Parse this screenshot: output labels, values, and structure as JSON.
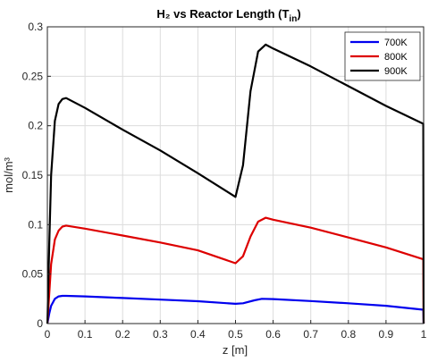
{
  "chart_data": {
    "type": "line",
    "title": "H₂ vs Reactor Length (T",
    "title_subscript": "in",
    "title_close": ")",
    "xlabel": "z [m]",
    "ylabel": "mol/m³",
    "xlim": [
      0,
      1
    ],
    "ylim": [
      0,
      0.3
    ],
    "grid": true,
    "legend_position": "top-right",
    "x_ticks": [
      0,
      0.1,
      0.2,
      0.3,
      0.4,
      0.5,
      0.6,
      0.7,
      0.8,
      0.9,
      1
    ],
    "x_tick_labels": [
      "0",
      "0.1",
      "0.2",
      "0.3",
      "0.4",
      "0.5",
      "0.6",
      "0.7",
      "0.8",
      "0.9",
      "1"
    ],
    "y_ticks": [
      0,
      0.05,
      0.1,
      0.15,
      0.2,
      0.25,
      0.3
    ],
    "y_tick_labels": [
      "0",
      "0.05",
      "0.1",
      "0.15",
      "0.2",
      "0.25",
      "0.3"
    ],
    "series": [
      {
        "name": "700K",
        "color": "#0000ee",
        "x": [
          0,
          0.005,
          0.01,
          0.02,
          0.03,
          0.04,
          0.05,
          0.1,
          0.2,
          0.3,
          0.4,
          0.5,
          0.52,
          0.55,
          0.57,
          0.6,
          0.7,
          0.8,
          0.9,
          0.999,
          1
        ],
        "y": [
          0,
          0.01,
          0.018,
          0.025,
          0.0275,
          0.028,
          0.028,
          0.0275,
          0.0258,
          0.0242,
          0.0226,
          0.02,
          0.0205,
          0.0235,
          0.025,
          0.0248,
          0.0228,
          0.0205,
          0.018,
          0.014,
          0
        ]
      },
      {
        "name": "800K",
        "color": "#dd0000",
        "x": [
          0,
          0.005,
          0.01,
          0.02,
          0.03,
          0.04,
          0.05,
          0.1,
          0.2,
          0.3,
          0.4,
          0.5,
          0.52,
          0.54,
          0.56,
          0.58,
          0.6,
          0.7,
          0.8,
          0.9,
          0.999,
          1
        ],
        "y": [
          0,
          0.03,
          0.06,
          0.085,
          0.094,
          0.098,
          0.099,
          0.096,
          0.089,
          0.082,
          0.074,
          0.061,
          0.068,
          0.088,
          0.103,
          0.107,
          0.105,
          0.097,
          0.087,
          0.077,
          0.065,
          0
        ]
      },
      {
        "name": "900K",
        "color": "#000000",
        "x": [
          0,
          0.005,
          0.01,
          0.02,
          0.03,
          0.04,
          0.05,
          0.1,
          0.2,
          0.3,
          0.4,
          0.5,
          0.52,
          0.54,
          0.56,
          0.58,
          0.6,
          0.7,
          0.8,
          0.9,
          0.999,
          1
        ],
        "y": [
          0,
          0.08,
          0.15,
          0.205,
          0.222,
          0.227,
          0.228,
          0.218,
          0.196,
          0.175,
          0.152,
          0.128,
          0.16,
          0.235,
          0.275,
          0.282,
          0.278,
          0.26,
          0.24,
          0.22,
          0.202,
          0
        ]
      }
    ]
  }
}
